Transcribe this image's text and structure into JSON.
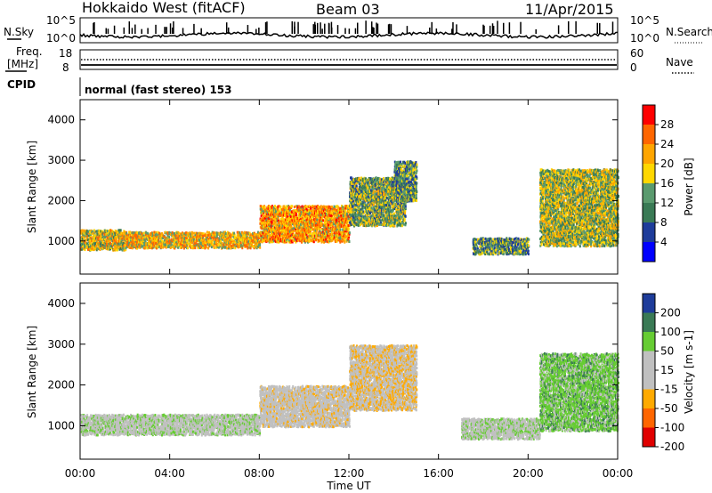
{
  "header": {
    "title": "Hokkaido West (fitACF)",
    "beam": "Beam 03",
    "date": "11/Apr/2015"
  },
  "panels": {
    "nsky_label": "N.Sky",
    "nsearch_label": "N.Search",
    "noise_top_tick": "10^5",
    "noise_bottom_tick": "10^0",
    "freq_label": "Freq.",
    "freq_unit": "[MHz]",
    "freq_ticks": [
      "18",
      "8"
    ],
    "nave_label": "Nave",
    "nave_ticks": [
      "60",
      "0"
    ],
    "cpid_label": "CPID",
    "cpid_text": "normal (fast stereo) 153"
  },
  "colors": {
    "power": [
      "#0000ff",
      "#1e3c9a",
      "#3a7a55",
      "#5a9a6e",
      "#ffd700",
      "#ffa500",
      "#ff6600",
      "#ff0000"
    ],
    "velocity": [
      "#e00000",
      "#ff6600",
      "#ffaa00",
      "#c0c0c0",
      "#c0c0c0",
      "#66cc33",
      "#3a7a55",
      "#1e3c9a"
    ]
  },
  "chart_data": [
    {
      "type": "heatmap",
      "name": "power",
      "ylabel": "Slant Range [km]",
      "ylim": [
        180,
        4500
      ],
      "yticks": [
        1000,
        2000,
        3000,
        4000
      ],
      "xlim": [
        0,
        24
      ],
      "xticks": [
        "00:00",
        "04:00",
        "08:00",
        "12:00",
        "16:00",
        "20:00",
        "00:00"
      ],
      "xlabel": "Time UT",
      "colorbar": {
        "label": "Power [dB]",
        "ticks": [
          "4",
          "8",
          "12",
          "16",
          "20",
          "24",
          "28"
        ],
        "range": [
          0,
          30
        ]
      },
      "features": [
        {
          "t0": 0.0,
          "t1": 2.0,
          "r0": 800,
          "r1": 1300,
          "level": 18
        },
        {
          "t0": 2.0,
          "t1": 8.0,
          "r0": 850,
          "r1": 1250,
          "level": 20
        },
        {
          "t0": 8.0,
          "t1": 12.0,
          "r0": 1000,
          "r1": 1900,
          "level": 22
        },
        {
          "t0": 12.0,
          "t1": 14.5,
          "r0": 1400,
          "r1": 2600,
          "level": 14
        },
        {
          "t0": 14.0,
          "t1": 15.0,
          "r0": 2000,
          "r1": 3000,
          "level": 12
        },
        {
          "t0": 17.5,
          "t1": 20.0,
          "r0": 700,
          "r1": 1100,
          "level": 12
        },
        {
          "t0": 20.5,
          "t1": 24.0,
          "r0": 900,
          "r1": 2800,
          "level": 16
        }
      ]
    },
    {
      "type": "heatmap",
      "name": "velocity",
      "ylabel": "Slant Range [km]",
      "ylim": [
        180,
        4500
      ],
      "yticks": [
        1000,
        2000,
        3000,
        4000
      ],
      "xlim": [
        0,
        24
      ],
      "xticks": [
        "00:00",
        "04:00",
        "08:00",
        "12:00",
        "16:00",
        "20:00",
        "00:00"
      ],
      "xlabel": "Time UT",
      "colorbar": {
        "label": "Velocity [m s-1]",
        "ticks": [
          "200",
          "100",
          "50",
          "15",
          "-15",
          "-50",
          "-100",
          "-200"
        ],
        "range": [
          -250,
          250
        ]
      },
      "features": [
        {
          "t0": 0.0,
          "t1": 8.0,
          "r0": 800,
          "r1": 1300,
          "level": 0
        },
        {
          "t0": 8.0,
          "t1": 12.0,
          "r0": 1000,
          "r1": 2000,
          "level": -30
        },
        {
          "t0": 12.0,
          "t1": 15.0,
          "r0": 1400,
          "r1": 3000,
          "level": -40
        },
        {
          "t0": 17.0,
          "t1": 20.5,
          "r0": 700,
          "r1": 1200,
          "level": 0
        },
        {
          "t0": 20.5,
          "t1": 24.0,
          "r0": 900,
          "r1": 2800,
          "level": 30
        }
      ]
    }
  ]
}
